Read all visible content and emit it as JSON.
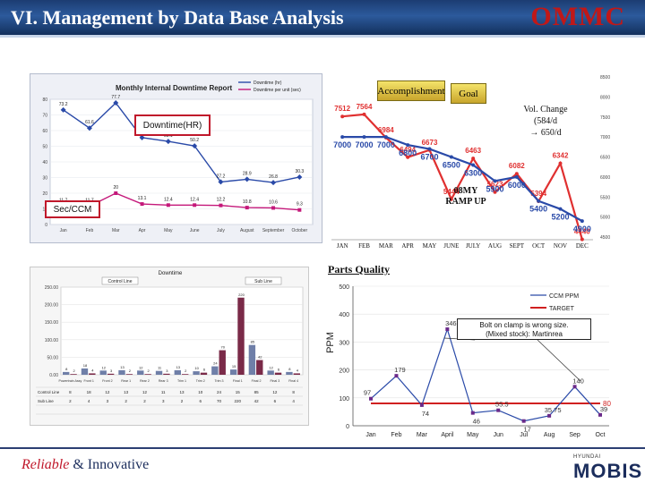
{
  "header": {
    "title": "VI. Management by Data Base Analysis",
    "logo": "OMMC"
  },
  "downtime_panel": {
    "callout_downtime": "Downtime(HR)",
    "callout_sec": "Sec/CCM"
  },
  "volume_panel": {
    "accomplishment": "Accomplishment",
    "goal": "Goal",
    "vol_change_1": "Vol. Change",
    "vol_change_2": "(584/d",
    "vol_change_3": "→ 650/d",
    "ramp_1": "08MY",
    "ramp_2": "RAMP UP"
  },
  "parts_panel": {
    "title": "Parts Quality",
    "note_1": "Bolt on clamp is wrong size.",
    "note_2": "(Mixed stock): Martinrea"
  },
  "footer": {
    "tagline_a": "Reliable",
    "tagline_b": "& Innovative",
    "brand_small": "HYUNDAI",
    "brand": "MOBIS"
  },
  "colors": {
    "header": "#1c3c72",
    "accent_red": "#c0182b",
    "line_blue": "#2a4aa8"
  },
  "chart_data": [
    {
      "type": "line",
      "title": "Monthly Internal Downtime Report",
      "categories": [
        "Jan",
        "Feb",
        "Mar",
        "Apr",
        "May",
        "June",
        "July",
        "August",
        "September",
        "October"
      ],
      "series": [
        {
          "name": "Downtime (hr)",
          "values": [
            73.2,
            61.6,
            77.7,
            55.5,
            53.1,
            50.2,
            27.2,
            28.9,
            26.8,
            30.3
          ]
        },
        {
          "name": "Downtime per unit (sec)",
          "values": [
            11.7,
            11.7,
            20.0,
            13.1,
            12.4,
            12.4,
            12.2,
            10.8,
            10.6,
            9.3
          ]
        }
      ]
    },
    {
      "type": "line",
      "title": "",
      "categories": [
        "JAN",
        "FEB",
        "MAR",
        "APR",
        "MAY",
        "JUNE",
        "JULY",
        "AUG",
        "SEPT",
        "OCT",
        "NOV",
        "DEC"
      ],
      "series": [
        {
          "name": "Accomplishment",
          "values": [
            7512,
            7564,
            6984,
            6494,
            6673,
            5444,
            6463,
            5623,
            6082,
            5394,
            6342,
            4440
          ]
        },
        {
          "name": "Goal",
          "values": [
            7000,
            7000,
            7000,
            6800,
            6700,
            6500,
            6300,
            5900,
            6000,
            5400,
            5200,
            4900
          ]
        }
      ]
    },
    {
      "type": "bar",
      "title": "Downtime",
      "categories": [
        "Powertrain Assy",
        "Front 1",
        "Front 2",
        "Rear 1",
        "Rear 2",
        "Rear 3",
        "Trim 1",
        "Trim 2",
        "Trim 3",
        "Final 1",
        "Final 2",
        "Final 3",
        "Final 4"
      ],
      "series": [
        {
          "name": "Control Line",
          "values": [
            8,
            18,
            12,
            13,
            12,
            11,
            13,
            10,
            24,
            15,
            85,
            12,
            8
          ]
        },
        {
          "name": "Sub Line",
          "values": [
            2,
            4,
            3,
            2,
            2,
            3,
            2,
            6,
            70,
            220,
            42,
            6,
            4
          ]
        }
      ]
    },
    {
      "type": "line",
      "title": "Parts Quality",
      "ylabel": "PPM",
      "ylim": [
        0,
        500
      ],
      "categories": [
        "Jan",
        "Feb",
        "Mar",
        "April",
        "May",
        "Jun",
        "Jul",
        "Aug",
        "Sep",
        "Oct"
      ],
      "series": [
        {
          "name": "CCM PPM",
          "values": [
            97,
            179,
            74,
            346,
            46,
            55.5,
            17,
            35.75,
            140,
            39
          ]
        },
        {
          "name": "TARGET",
          "values": [
            80,
            80,
            80,
            80,
            80,
            80,
            80,
            80,
            80,
            80
          ]
        }
      ]
    }
  ]
}
